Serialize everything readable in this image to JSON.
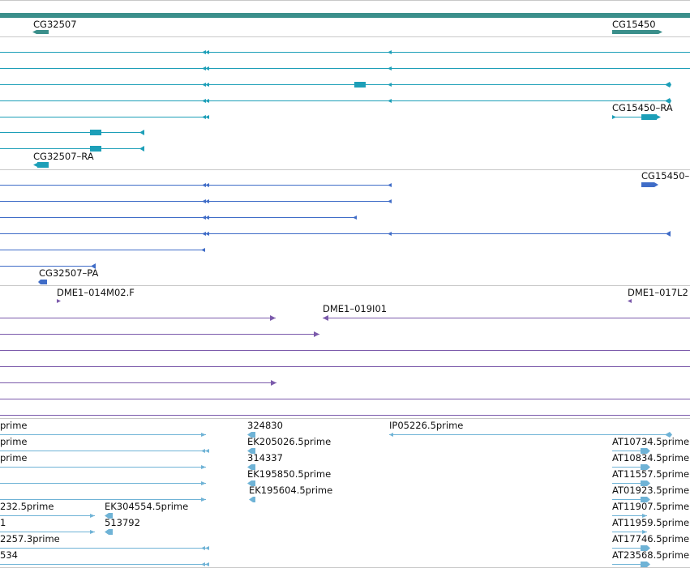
{
  "colors": {
    "gene": "#3b8f8b",
    "mrna": "#1d9fb8",
    "protein": "#3f6cc7",
    "clone": "#7b5aab",
    "est": "#6fb3d6",
    "separator": "#c8c8c8"
  },
  "tracks": [
    {
      "name": "gene",
      "labels": [
        {
          "name": "label-cg32507",
          "text": "CG32507"
        },
        {
          "name": "label-cg15450",
          "text": "CG15450"
        }
      ]
    },
    {
      "name": "mrna",
      "labels": [
        {
          "name": "label-cg15450-ra",
          "text": "CG15450–RA"
        },
        {
          "name": "label-cg32507-ra",
          "text": "CG32507–RA"
        }
      ]
    },
    {
      "name": "protein",
      "labels": [
        {
          "name": "label-cg15450-p",
          "text": "CG15450–"
        },
        {
          "name": "label-cg32507-pa",
          "text": "CG32507–PA"
        }
      ]
    },
    {
      "name": "clone",
      "labels": [
        {
          "name": "label-dme1-014m02-f",
          "text": "DME1–014M02.F"
        },
        {
          "name": "label-dme1-017l2",
          "text": "DME1–017L2"
        },
        {
          "name": "label-dme1-019i01",
          "text": "DME1–019I01"
        }
      ]
    },
    {
      "name": "est",
      "labels": [
        {
          "name": "label-prime-1",
          "text": "prime"
        },
        {
          "name": "label-prime-2",
          "text": "prime"
        },
        {
          "name": "label-prime-3",
          "text": "prime"
        },
        {
          "name": "label-324830",
          "text": "324830"
        },
        {
          "name": "label-ek205026",
          "text": "EK205026.5prime"
        },
        {
          "name": "label-314337",
          "text": "314337"
        },
        {
          "name": "label-ek195850",
          "text": "EK195850.5prime"
        },
        {
          "name": "label-ek195604",
          "text": "EK195604.5prime"
        },
        {
          "name": "label-ip05226",
          "text": "IP05226.5prime"
        },
        {
          "name": "label-at10734",
          "text": "AT10734.5prime"
        },
        {
          "name": "label-at10834",
          "text": "AT10834.5prime"
        },
        {
          "name": "label-at11557",
          "text": "AT11557.5prime"
        },
        {
          "name": "label-at01923",
          "text": "AT01923.5prime"
        },
        {
          "name": "label-at11907",
          "text": "AT11907.5prime"
        },
        {
          "name": "label-at11959",
          "text": "AT11959.5prime"
        },
        {
          "name": "label-at17746",
          "text": "AT17746.5prime"
        },
        {
          "name": "label-at23568",
          "text": "AT23568.5prime"
        },
        {
          "name": "label-232-5prime",
          "text": "232.5prime"
        },
        {
          "name": "label-ek304554",
          "text": "EK304554.5prime"
        },
        {
          "name": "label-1",
          "text": "1"
        },
        {
          "name": "label-513792",
          "text": "513792"
        },
        {
          "name": "label-2257-3prime",
          "text": "2257.3prime"
        },
        {
          "name": "label-534",
          "text": "534"
        }
      ]
    }
  ]
}
